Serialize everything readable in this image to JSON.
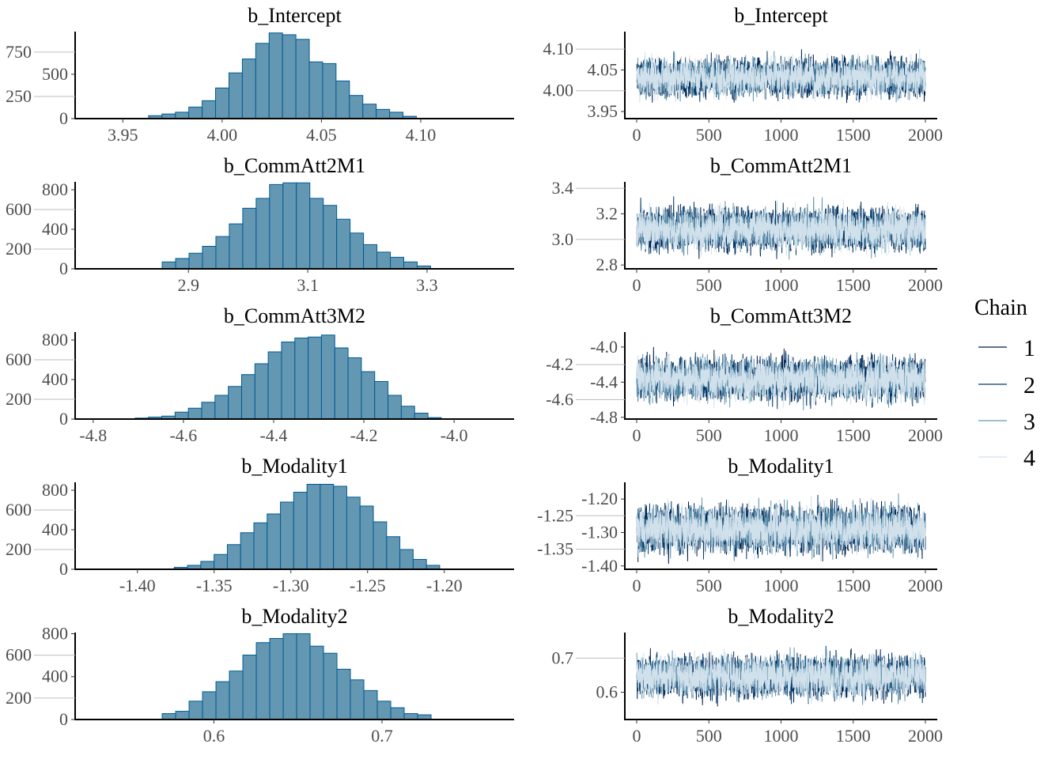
{
  "colors": {
    "hist_fill": "#6497b1",
    "hist_stroke": "#005b96",
    "chain_1": "#011f4b",
    "chain_2": "#03396c",
    "chain_3": "#6497b1",
    "chain_4": "#d1e1ec",
    "tick_text": "#4d4d4d"
  },
  "legend": {
    "title": "Chain",
    "items": [
      "1",
      "2",
      "3",
      "4"
    ]
  },
  "chart_data": [
    {
      "type": "bar",
      "title": "b_Intercept",
      "xlim": [
        3.926,
        4.147
      ],
      "ylim": [
        0,
        980
      ],
      "xticks": [
        {
          "value": 3.95,
          "label": "3.95"
        },
        {
          "value": 4.0,
          "label": "4.00"
        },
        {
          "value": 4.05,
          "label": "4.05"
        },
        {
          "value": 4.1,
          "label": "4.10"
        }
      ],
      "yticks": [
        {
          "value": 0,
          "label": "0"
        },
        {
          "value": 250,
          "label": "250"
        },
        {
          "value": 500,
          "label": "500"
        },
        {
          "value": 750,
          "label": "750"
        }
      ],
      "bin_start": 3.963,
      "bin_width": 0.00674,
      "counts": [
        33,
        52,
        72,
        130,
        202,
        345,
        515,
        672,
        848,
        965,
        945,
        893,
        639,
        620,
        424,
        261,
        163,
        104,
        72,
        26
      ]
    },
    {
      "type": "line",
      "title": "b_Intercept",
      "xlim": [
        0,
        2000
      ],
      "ylim": [
        3.933,
        4.142
      ],
      "n_iter": 2000,
      "xticks": [
        {
          "value": 0,
          "label": "0"
        },
        {
          "value": 500,
          "label": "500"
        },
        {
          "value": 1000,
          "label": "1000"
        },
        {
          "value": 1500,
          "label": "1500"
        },
        {
          "value": 2000,
          "label": "2000"
        }
      ],
      "yticks": [
        {
          "value": 3.95,
          "label": "3.95"
        },
        {
          "value": 4.0,
          "label": "4.00"
        },
        {
          "value": 4.05,
          "label": "4.05"
        },
        {
          "value": 4.1,
          "label": "4.10"
        }
      ],
      "chains": [
        {
          "name": "1",
          "mean": 4.032,
          "sd": 0.021
        },
        {
          "name": "2",
          "mean": 4.032,
          "sd": 0.021
        },
        {
          "name": "3",
          "mean": 4.032,
          "sd": 0.021
        },
        {
          "name": "4",
          "mean": 4.032,
          "sd": 0.021
        }
      ]
    },
    {
      "type": "bar",
      "title": "b_CommAtt2M1",
      "xlim": [
        2.71,
        3.446
      ],
      "ylim": [
        0,
        880
      ],
      "xticks": [
        {
          "value": 2.9,
          "label": "2.9"
        },
        {
          "value": 3.1,
          "label": "3.1"
        },
        {
          "value": 3.3,
          "label": "3.3"
        }
      ],
      "yticks": [
        {
          "value": 0,
          "label": "0"
        },
        {
          "value": 200,
          "label": "200"
        },
        {
          "value": 400,
          "label": "400"
        },
        {
          "value": 600,
          "label": "600"
        },
        {
          "value": 800,
          "label": "800"
        }
      ],
      "bin_start": 2.856,
      "bin_width": 0.0225,
      "counts": [
        70,
        105,
        158,
        228,
        327,
        455,
        613,
        713,
        853,
        870,
        870,
        713,
        642,
        502,
        362,
        245,
        169,
        117,
        70,
        29
      ]
    },
    {
      "type": "line",
      "title": "b_CommAtt2M1",
      "xlim": [
        0,
        2000
      ],
      "ylim": [
        2.77,
        3.45
      ],
      "n_iter": 2000,
      "xticks": [
        {
          "value": 0,
          "label": "0"
        },
        {
          "value": 500,
          "label": "500"
        },
        {
          "value": 1000,
          "label": "1000"
        },
        {
          "value": 1500,
          "label": "1500"
        },
        {
          "value": 2000,
          "label": "2000"
        }
      ],
      "yticks": [
        {
          "value": 2.8,
          "label": "2.8"
        },
        {
          "value": 3.0,
          "label": "3.0"
        },
        {
          "value": 3.2,
          "label": "3.2"
        },
        {
          "value": 3.4,
          "label": "3.4"
        }
      ],
      "chains": [
        {
          "name": "1",
          "mean": 3.08,
          "sd": 0.075
        },
        {
          "name": "2",
          "mean": 3.08,
          "sd": 0.075
        },
        {
          "name": "3",
          "mean": 3.08,
          "sd": 0.075
        },
        {
          "name": "4",
          "mean": 3.08,
          "sd": 0.075
        }
      ]
    },
    {
      "type": "bar",
      "title": "b_CommAtt3M2",
      "xlim": [
        -4.84,
        -3.867
      ],
      "ylim": [
        0,
        880
      ],
      "xticks": [
        {
          "value": -4.8,
          "label": "-4.8"
        },
        {
          "value": -4.6,
          "label": "-4.6"
        },
        {
          "value": -4.4,
          "label": "-4.4"
        },
        {
          "value": -4.2,
          "label": "-4.2"
        },
        {
          "value": -4.0,
          "label": "-4.0"
        }
      ],
      "yticks": [
        {
          "value": 0,
          "label": "0"
        },
        {
          "value": 200,
          "label": "200"
        },
        {
          "value": 400,
          "label": "400"
        },
        {
          "value": 600,
          "label": "600"
        },
        {
          "value": 800,
          "label": "800"
        }
      ],
      "bin_start": -4.707,
      "bin_width": 0.0295,
      "counts": [
        10,
        20,
        30,
        70,
        110,
        170,
        240,
        330,
        450,
        560,
        680,
        780,
        820,
        830,
        850,
        720,
        620,
        480,
        380,
        240,
        130,
        60,
        15
      ]
    },
    {
      "type": "line",
      "title": "b_CommAtt3M2",
      "xlim": [
        0,
        2000
      ],
      "ylim": [
        -4.82,
        -3.83
      ],
      "n_iter": 2000,
      "xticks": [
        {
          "value": 0,
          "label": "0"
        },
        {
          "value": 500,
          "label": "500"
        },
        {
          "value": 1000,
          "label": "1000"
        },
        {
          "value": 1500,
          "label": "1500"
        },
        {
          "value": 2000,
          "label": "2000"
        }
      ],
      "yticks": [
        {
          "value": -4.8,
          "label": "-4.8"
        },
        {
          "value": -4.6,
          "label": "-4.6"
        },
        {
          "value": -4.4,
          "label": "-4.4"
        },
        {
          "value": -4.2,
          "label": "-4.2"
        },
        {
          "value": -4.0,
          "label": "-4.0"
        }
      ],
      "chains": [
        {
          "name": "1",
          "mean": -4.37,
          "sd": 0.11
        },
        {
          "name": "2",
          "mean": -4.37,
          "sd": 0.11
        },
        {
          "name": "3",
          "mean": -4.37,
          "sd": 0.11
        },
        {
          "name": "4",
          "mean": -4.37,
          "sd": 0.11
        }
      ]
    },
    {
      "type": "bar",
      "title": "b_Modality1",
      "xlim": [
        -1.4406,
        -1.1545
      ],
      "ylim": [
        0,
        880
      ],
      "xticks": [
        {
          "value": -1.4,
          "label": "-1.40"
        },
        {
          "value": -1.35,
          "label": "-1.35"
        },
        {
          "value": -1.3,
          "label": "-1.30"
        },
        {
          "value": -1.25,
          "label": "-1.25"
        },
        {
          "value": -1.2,
          "label": "-1.20"
        }
      ],
      "yticks": [
        {
          "value": 0,
          "label": "0"
        },
        {
          "value": 200,
          "label": "200"
        },
        {
          "value": 400,
          "label": "400"
        },
        {
          "value": 600,
          "label": "600"
        },
        {
          "value": 800,
          "label": "800"
        }
      ],
      "bin_start": -1.376,
      "bin_width": 0.00865,
      "counts": [
        20,
        40,
        80,
        150,
        250,
        370,
        470,
        560,
        680,
        780,
        860,
        860,
        840,
        730,
        640,
        480,
        330,
        200,
        100,
        40
      ]
    },
    {
      "type": "line",
      "title": "b_Modality1",
      "xlim": [
        0,
        2000
      ],
      "ylim": [
        -1.41,
        -1.15
      ],
      "n_iter": 2000,
      "xticks": [
        {
          "value": 0,
          "label": "0"
        },
        {
          "value": 500,
          "label": "500"
        },
        {
          "value": 1000,
          "label": "1000"
        },
        {
          "value": 1500,
          "label": "1500"
        },
        {
          "value": 2000,
          "label": "2000"
        }
      ],
      "yticks": [
        {
          "value": -1.4,
          "label": "-1.40"
        },
        {
          "value": -1.35,
          "label": "-1.35"
        },
        {
          "value": -1.3,
          "label": "-1.30"
        },
        {
          "value": -1.25,
          "label": "-1.25"
        },
        {
          "value": -1.2,
          "label": "-1.20"
        }
      ],
      "chains": [
        {
          "name": "1",
          "mean": -1.29,
          "sd": 0.032
        },
        {
          "name": "2",
          "mean": -1.29,
          "sd": 0.032
        },
        {
          "name": "3",
          "mean": -1.29,
          "sd": 0.032
        },
        {
          "name": "4",
          "mean": -1.29,
          "sd": 0.032
        }
      ]
    },
    {
      "type": "bar",
      "title": "b_Modality2",
      "xlim": [
        0.5174,
        0.7786
      ],
      "ylim": [
        0,
        811
      ],
      "xticks": [
        {
          "value": 0.6,
          "label": "0.6"
        },
        {
          "value": 0.7,
          "label": "0.7"
        }
      ],
      "yticks": [
        {
          "value": 0,
          "label": "0"
        },
        {
          "value": 200,
          "label": "200"
        },
        {
          "value": 400,
          "label": "400"
        },
        {
          "value": 600,
          "label": "600"
        },
        {
          "value": 800,
          "label": "800"
        }
      ],
      "bin_start": 0.5692,
      "bin_width": 0.008,
      "counts": [
        55,
        77,
        171,
        259,
        353,
        452,
        601,
        717,
        756,
        800,
        800,
        684,
        618,
        469,
        370,
        270,
        171,
        110,
        55,
        44
      ]
    },
    {
      "type": "line",
      "title": "b_Modality2",
      "xlim": [
        0,
        2000
      ],
      "ylim": [
        0.52,
        0.775
      ],
      "n_iter": 2000,
      "xticks": [
        {
          "value": 0,
          "label": "0"
        },
        {
          "value": 500,
          "label": "500"
        },
        {
          "value": 1000,
          "label": "1000"
        },
        {
          "value": 1500,
          "label": "1500"
        },
        {
          "value": 2000,
          "label": "2000"
        }
      ],
      "yticks": [
        {
          "value": 0.6,
          "label": "0.6"
        },
        {
          "value": 0.7,
          "label": "0.7"
        }
      ],
      "chains": [
        {
          "name": "1",
          "mean": 0.647,
          "sd": 0.028
        },
        {
          "name": "2",
          "mean": 0.647,
          "sd": 0.028
        },
        {
          "name": "3",
          "mean": 0.647,
          "sd": 0.028
        },
        {
          "name": "4",
          "mean": 0.647,
          "sd": 0.028
        }
      ]
    }
  ]
}
